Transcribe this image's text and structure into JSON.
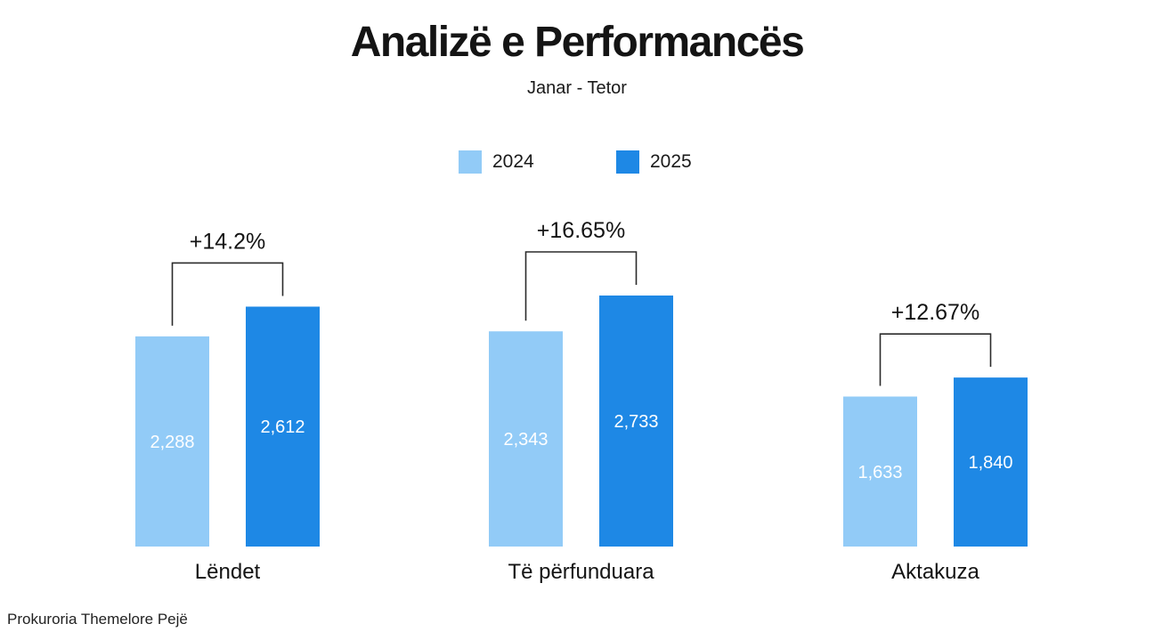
{
  "header": {
    "title": "Analizë e Performancës",
    "subtitle": "Janar - Tetor"
  },
  "footer": {
    "text": "Prokuroria Themelore Pejë"
  },
  "colors": {
    "series_2024": "#92cbf7",
    "series_2025": "#1e88e5",
    "bracket": "#2b2b2b",
    "text": "#141414"
  },
  "chart_data": {
    "type": "bar",
    "title": "Analizë e Performancës",
    "subtitle": "Janar - Tetor",
    "categories": [
      "Lëndet",
      "Të përfunduara",
      "Aktakuza"
    ],
    "series": [
      {
        "name": "2024",
        "values": [
          2288,
          2343,
          1633
        ],
        "labels": [
          "2,288",
          "2,343",
          "1,633"
        ]
      },
      {
        "name": "2025",
        "values": [
          2612,
          2733,
          1840
        ],
        "labels": [
          "2,612",
          "2,733",
          "1,840"
        ]
      }
    ],
    "changes": [
      "+14.2%",
      "+16.65%",
      "+12.67%"
    ],
    "legend_position": "top-center",
    "grid": false
  }
}
